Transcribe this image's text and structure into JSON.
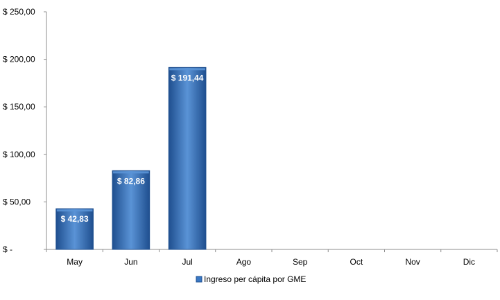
{
  "chart_data": {
    "type": "bar",
    "categories": [
      "May",
      "Jun",
      "Jul",
      "Ago",
      "Sep",
      "Oct",
      "Nov",
      "Dic"
    ],
    "series": [
      {
        "name": "Ingreso per cápita por GME",
        "values": [
          42.83,
          82.86,
          191.44,
          null,
          null,
          null,
          null,
          null
        ],
        "data_labels": [
          "$ 42,83",
          "$ 82,86",
          "$ 191,44",
          null,
          null,
          null,
          null,
          null
        ]
      }
    ],
    "y_ticks": [
      0,
      50,
      100,
      150,
      200,
      250
    ],
    "y_tick_labels": [
      "$ -",
      "$ 50,00",
      "$ 100,00",
      "$ 150,00",
      "$ 200,00",
      "$ 250,00"
    ],
    "ylim": [
      0,
      250
    ],
    "grid": false,
    "legend_position": "bottom-center",
    "bar_color": "#3a78c4",
    "bar_color_light": "#5a93d6",
    "bar_color_dark": "#1f4f8f"
  }
}
